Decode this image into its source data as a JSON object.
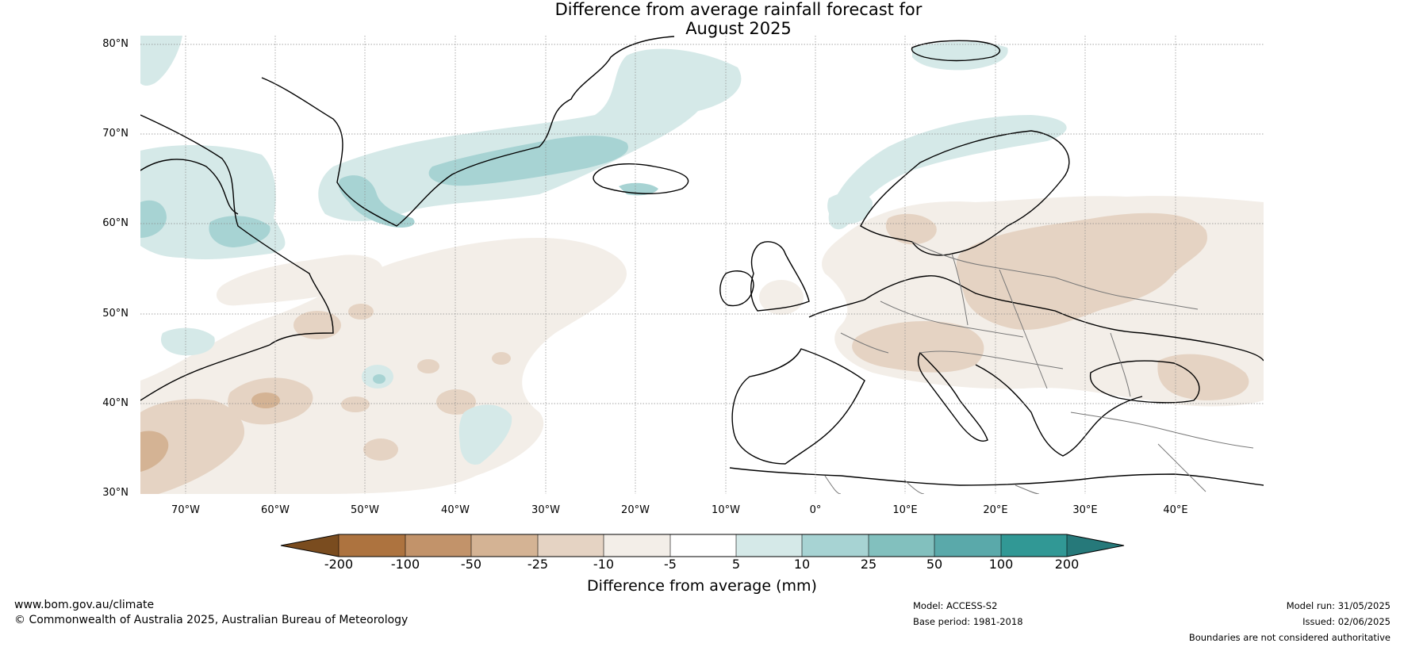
{
  "title_line1": "Difference from average rainfall forecast for",
  "title_line2": "August 2025",
  "lat_labels": [
    "80°N",
    "70°N",
    "60°N",
    "50°N",
    "40°N",
    "30°N"
  ],
  "lon_labels": [
    "70°W",
    "60°W",
    "50°W",
    "40°W",
    "30°W",
    "20°W",
    "10°W",
    "0°",
    "10°E",
    "20°E",
    "30°E",
    "40°E"
  ],
  "colorbar": {
    "label": "Difference from average (mm)",
    "ticks": [
      "-200",
      "-100",
      "-50",
      "-25",
      "-10",
      "-5",
      "5",
      "10",
      "25",
      "50",
      "100",
      "200"
    ],
    "colors": [
      "#7a4c1f",
      "#ad733f",
      "#c2936a",
      "#d4b394",
      "#e5d3c3",
      "#f3eee8",
      "#ffffff",
      "#d5e9e8",
      "#a7d3d3",
      "#82c0be",
      "#5aa9aa",
      "#319895",
      "#26797a"
    ]
  },
  "footer": {
    "website": "www.bom.gov.au/climate",
    "copyright": "© Commonwealth of Australia 2025, Australian Bureau of Meteorology",
    "model": "Model: ACCESS-S2",
    "base_period": "Base period: 1981-2018",
    "model_run": "Model run: 31/05/2025",
    "issued": "Issued: 02/06/2025",
    "disclaimer": "Boundaries are not considered authoritative"
  }
}
